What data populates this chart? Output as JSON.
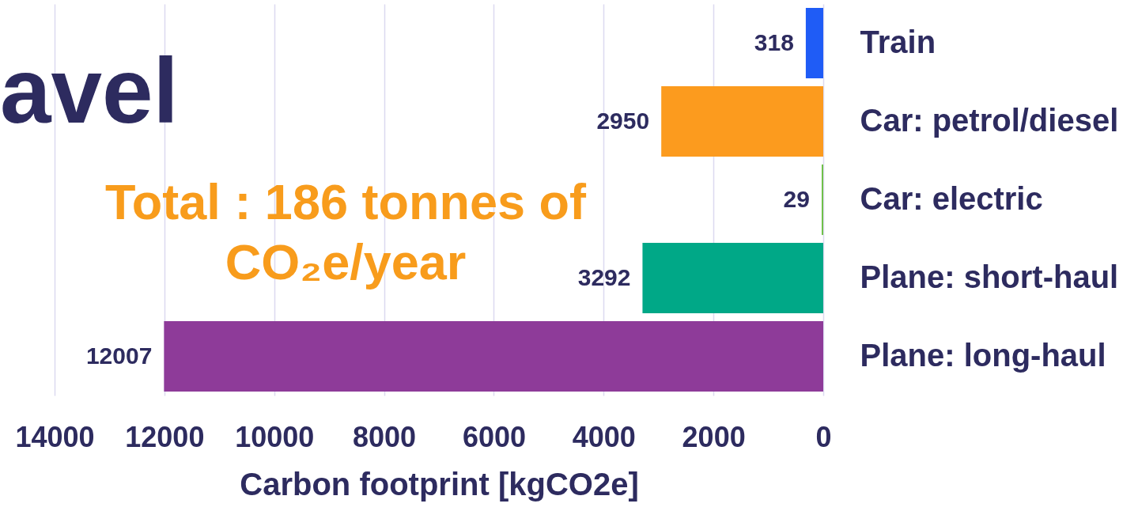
{
  "chart_data": {
    "type": "bar",
    "orientation": "horizontal",
    "title": "avel",
    "xlabel": "Carbon footprint [kgCO2e]",
    "categories": [
      "Train",
      "Car: petrol/diesel",
      "Car: electric",
      "Plane: short-haul",
      "Plane: long-haul"
    ],
    "values": [
      318,
      2950,
      29,
      3292,
      12007
    ],
    "colors": [
      "#1f5cf6",
      "#fc9b1e",
      "#6fc04a",
      "#00a887",
      "#8e3b99"
    ],
    "xlim": [
      14000,
      0
    ],
    "xticks": [
      14000,
      12000,
      10000,
      8000,
      6000,
      4000,
      2000,
      0
    ],
    "grid": "x",
    "data_labels": true,
    "annotations": [
      "Total : 186 tonnes of\nCO₂e/year"
    ]
  }
}
